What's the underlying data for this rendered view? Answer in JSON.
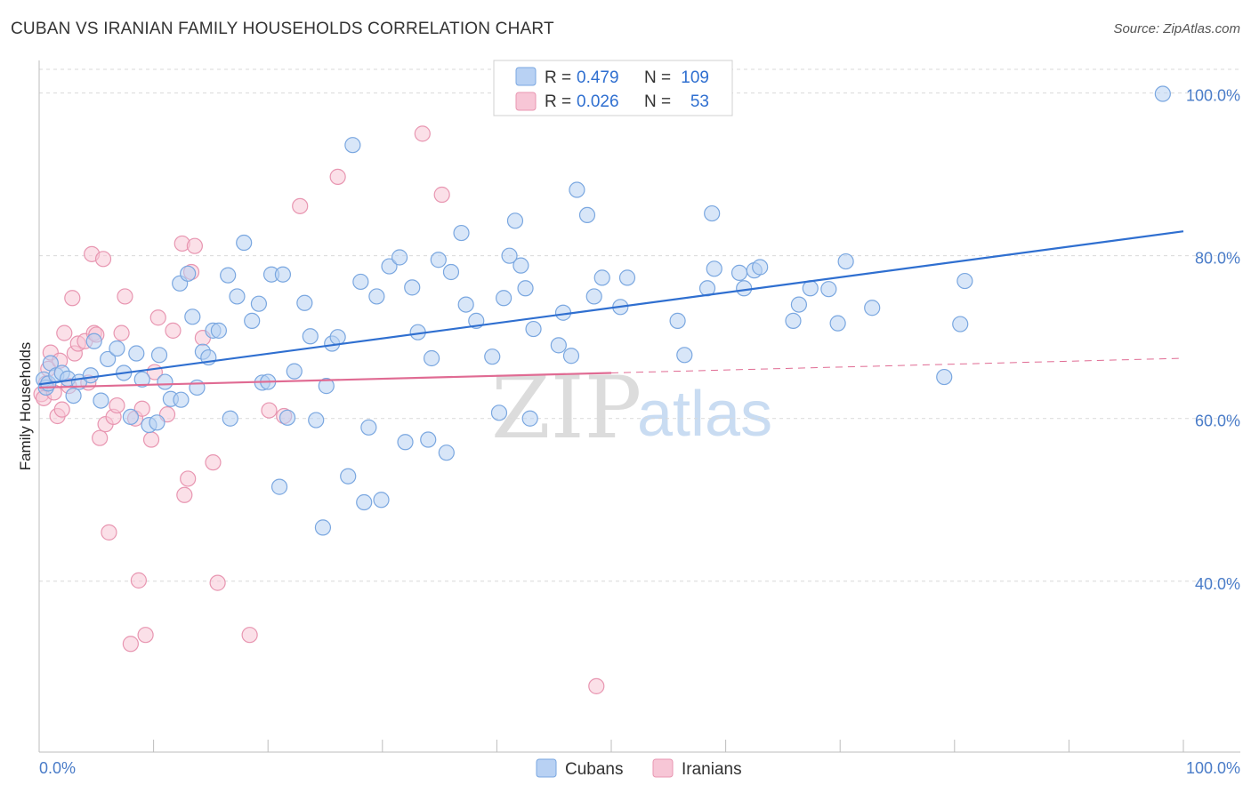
{
  "title": "CUBAN VS IRANIAN FAMILY HOUSEHOLDS CORRELATION CHART",
  "source": "Source: ZipAtlas.com",
  "watermark": {
    "zip": "ZIP",
    "atlas": "atlas"
  },
  "legend_top": {
    "rows": [
      {
        "r_label": "R =",
        "r_value": "0.479",
        "n_label": "N =",
        "n_value": "109"
      },
      {
        "r_label": "R =",
        "r_value": "0.026",
        "n_label": "N =",
        "n_value": "53"
      }
    ]
  },
  "legend_bottom": {
    "items": [
      "Cubans",
      "Iranians"
    ]
  },
  "colors": {
    "cubans_fill": "#b8d1f3",
    "cubans_stroke": "#7aa7e0",
    "cubans_line": "#2f6fd0",
    "iranians_fill": "#f7c6d6",
    "iranians_stroke": "#e896b1",
    "iranians_line": "#e06b93",
    "grid": "#d9d9d9",
    "tick_label": "#4a7cc8"
  },
  "chart_data": {
    "type": "scatter",
    "title": "CUBAN VS IRANIAN FAMILY HOUSEHOLDS CORRELATION CHART",
    "xlabel": "",
    "ylabel": "Family Households",
    "xlim": [
      0,
      100
    ],
    "ylim": [
      19,
      104
    ],
    "x_tick_labels": [
      "0.0%",
      "100.0%"
    ],
    "y_ticks": [
      40,
      60,
      80,
      100
    ],
    "y_tick_labels": [
      "40.0%",
      "60.0%",
      "80.0%",
      "100.0%"
    ],
    "grid": true,
    "legend": "top-center",
    "series": [
      {
        "name": "Cubans",
        "r": 0.479,
        "n": 109,
        "trend": {
          "x": [
            0,
            100
          ],
          "y": [
            64.2,
            83.0
          ],
          "style": "solid"
        },
        "points": [
          [
            0.4,
            64.8
          ],
          [
            0.6,
            63.8
          ],
          [
            0.8,
            64.3
          ],
          [
            1.0,
            66.8
          ],
          [
            1.5,
            65.3
          ],
          [
            2.0,
            65.6
          ],
          [
            2.5,
            64.9
          ],
          [
            3.0,
            62.8
          ],
          [
            3.5,
            64.5
          ],
          [
            4.5,
            65.3
          ],
          [
            4.8,
            69.5
          ],
          [
            5.4,
            62.2
          ],
          [
            6.0,
            67.3
          ],
          [
            6.8,
            68.6
          ],
          [
            7.4,
            65.6
          ],
          [
            8.0,
            60.2
          ],
          [
            8.5,
            68.0
          ],
          [
            9.0,
            64.8
          ],
          [
            9.6,
            59.2
          ],
          [
            10.3,
            59.5
          ],
          [
            10.5,
            67.8
          ],
          [
            11.0,
            64.5
          ],
          [
            11.5,
            62.4
          ],
          [
            12.3,
            76.6
          ],
          [
            12.4,
            62.3
          ],
          [
            13.0,
            77.8
          ],
          [
            13.4,
            72.5
          ],
          [
            13.8,
            63.8
          ],
          [
            14.3,
            68.2
          ],
          [
            14.8,
            67.5
          ],
          [
            15.2,
            70.8
          ],
          [
            15.7,
            70.8
          ],
          [
            16.5,
            77.6
          ],
          [
            16.7,
            60.0
          ],
          [
            17.3,
            75.0
          ],
          [
            17.9,
            81.6
          ],
          [
            18.6,
            72.0
          ],
          [
            19.2,
            74.1
          ],
          [
            19.5,
            64.4
          ],
          [
            20.0,
            64.5
          ],
          [
            20.3,
            77.7
          ],
          [
            21.3,
            77.7
          ],
          [
            21.0,
            51.6
          ],
          [
            21.7,
            60.1
          ],
          [
            22.3,
            65.8
          ],
          [
            23.2,
            74.2
          ],
          [
            23.7,
            70.1
          ],
          [
            24.2,
            59.8
          ],
          [
            24.8,
            46.6
          ],
          [
            25.1,
            64.0
          ],
          [
            25.6,
            69.2
          ],
          [
            26.1,
            70.0
          ],
          [
            27.0,
            52.9
          ],
          [
            27.4,
            93.6
          ],
          [
            28.1,
            76.8
          ],
          [
            28.4,
            49.7
          ],
          [
            28.8,
            58.9
          ],
          [
            29.5,
            75.0
          ],
          [
            29.9,
            50.0
          ],
          [
            30.6,
            78.7
          ],
          [
            31.5,
            79.8
          ],
          [
            32.0,
            57.1
          ],
          [
            32.6,
            76.1
          ],
          [
            33.1,
            70.6
          ],
          [
            34.0,
            57.4
          ],
          [
            34.3,
            67.4
          ],
          [
            34.9,
            79.5
          ],
          [
            35.6,
            55.8
          ],
          [
            36.0,
            78.0
          ],
          [
            36.9,
            82.8
          ],
          [
            37.3,
            74.0
          ],
          [
            38.2,
            72.0
          ],
          [
            39.6,
            67.6
          ],
          [
            40.2,
            60.7
          ],
          [
            40.6,
            74.8
          ],
          [
            41.1,
            80.0
          ],
          [
            41.6,
            84.3
          ],
          [
            42.1,
            78.8
          ],
          [
            42.5,
            76.0
          ],
          [
            42.9,
            60.0
          ],
          [
            43.2,
            71.0
          ],
          [
            45.4,
            69.0
          ],
          [
            45.8,
            73.0
          ],
          [
            46.5,
            67.7
          ],
          [
            47.0,
            88.1
          ],
          [
            47.9,
            85.0
          ],
          [
            48.5,
            75.0
          ],
          [
            49.2,
            77.3
          ],
          [
            50.8,
            73.7
          ],
          [
            51.4,
            77.3
          ],
          [
            55.8,
            72.0
          ],
          [
            56.4,
            67.8
          ],
          [
            58.4,
            76.0
          ],
          [
            58.8,
            85.2
          ],
          [
            59.0,
            78.4
          ],
          [
            61.2,
            77.9
          ],
          [
            61.6,
            76.0
          ],
          [
            62.5,
            78.2
          ],
          [
            63.0,
            78.6
          ],
          [
            65.9,
            72.0
          ],
          [
            66.4,
            74.0
          ],
          [
            67.4,
            76.0
          ],
          [
            69.0,
            75.9
          ],
          [
            69.8,
            71.7
          ],
          [
            70.5,
            79.3
          ],
          [
            72.8,
            73.6
          ],
          [
            79.1,
            65.1
          ],
          [
            80.5,
            71.6
          ],
          [
            80.9,
            76.9
          ],
          [
            98.2,
            99.9
          ]
        ]
      },
      {
        "name": "Iranians",
        "r": 0.026,
        "n": 53,
        "trend": {
          "x": [
            0,
            100
          ],
          "y": [
            63.8,
            67.4
          ],
          "style": "solid-then-dashed",
          "solid_until_x": 50
        },
        "points": [
          [
            0.2,
            63.0
          ],
          [
            0.4,
            62.5
          ],
          [
            0.6,
            64.3
          ],
          [
            0.8,
            66.1
          ],
          [
            1.0,
            68.1
          ],
          [
            1.3,
            63.2
          ],
          [
            1.6,
            60.3
          ],
          [
            1.8,
            67.1
          ],
          [
            2.0,
            61.1
          ],
          [
            2.2,
            70.5
          ],
          [
            2.6,
            64.0
          ],
          [
            2.9,
            74.8
          ],
          [
            3.1,
            68.0
          ],
          [
            3.4,
            69.2
          ],
          [
            4.0,
            69.5
          ],
          [
            4.3,
            64.4
          ],
          [
            4.6,
            80.2
          ],
          [
            4.8,
            70.5
          ],
          [
            5.0,
            70.3
          ],
          [
            5.3,
            57.6
          ],
          [
            5.6,
            79.6
          ],
          [
            5.8,
            59.3
          ],
          [
            6.1,
            46.0
          ],
          [
            6.5,
            60.2
          ],
          [
            6.8,
            61.6
          ],
          [
            7.2,
            70.5
          ],
          [
            7.5,
            75.0
          ],
          [
            8.0,
            32.3
          ],
          [
            8.4,
            60.0
          ],
          [
            8.7,
            40.1
          ],
          [
            9.0,
            61.2
          ],
          [
            9.3,
            33.4
          ],
          [
            9.8,
            57.4
          ],
          [
            10.1,
            65.7
          ],
          [
            10.4,
            72.4
          ],
          [
            11.2,
            60.5
          ],
          [
            11.7,
            70.8
          ],
          [
            12.5,
            81.5
          ],
          [
            12.7,
            50.6
          ],
          [
            13.0,
            52.6
          ],
          [
            13.3,
            78.0
          ],
          [
            13.6,
            81.2
          ],
          [
            14.3,
            69.9
          ],
          [
            15.2,
            54.6
          ],
          [
            15.6,
            39.8
          ],
          [
            18.4,
            33.4
          ],
          [
            20.1,
            61.0
          ],
          [
            21.4,
            60.3
          ],
          [
            22.8,
            86.1
          ],
          [
            26.1,
            89.7
          ],
          [
            33.5,
            95.0
          ],
          [
            35.2,
            87.5
          ],
          [
            48.7,
            27.1
          ]
        ]
      }
    ]
  }
}
